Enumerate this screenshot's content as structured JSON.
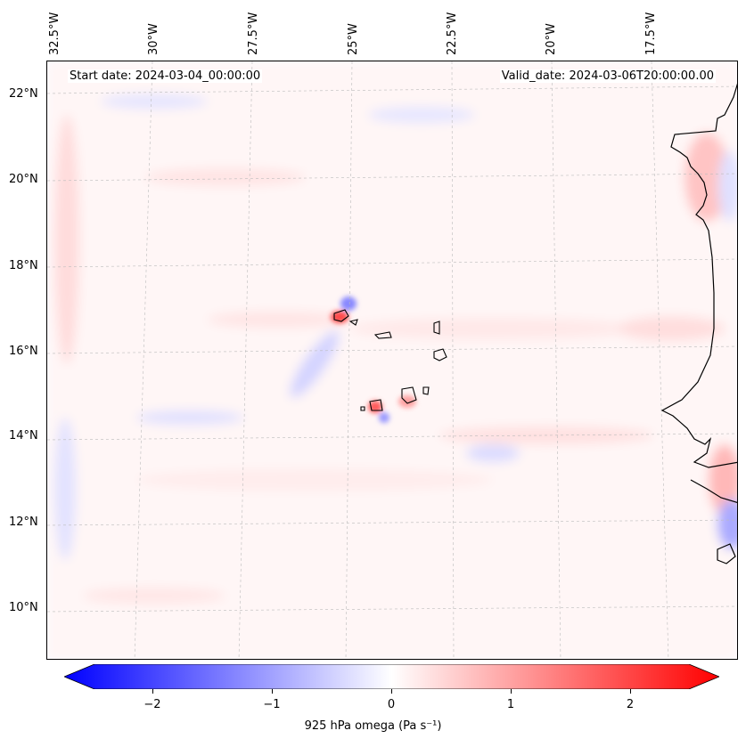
{
  "header": {
    "start_date": "Start date: 2024-03-04_00:00:00",
    "valid_date": "Valid_date: 2024-03-06T20:00:00.00"
  },
  "axes": {
    "lon_labels": [
      "32.5°W",
      "30°W",
      "27.5°W",
      "25°W",
      "22.5°W",
      "20°W",
      "17.5°W"
    ],
    "lat_labels": [
      "22°N",
      "20°N",
      "18°N",
      "16°N",
      "14°N",
      "12°N",
      "10°N"
    ]
  },
  "colorbar": {
    "label": "925 hPa omega (Pa s⁻¹)",
    "ticks": [
      "−2",
      "−1",
      "0",
      "1",
      "2"
    ],
    "tick_values": [
      -2,
      -1,
      0,
      1,
      2
    ],
    "range": [
      -2.6,
      2.6
    ],
    "colors": {
      "min": "#0000ff",
      "mid": "#ffffff",
      "max": "#ff0000"
    }
  },
  "colors": {
    "land_outline": "#000000",
    "grid": "#bbbbbb"
  }
}
